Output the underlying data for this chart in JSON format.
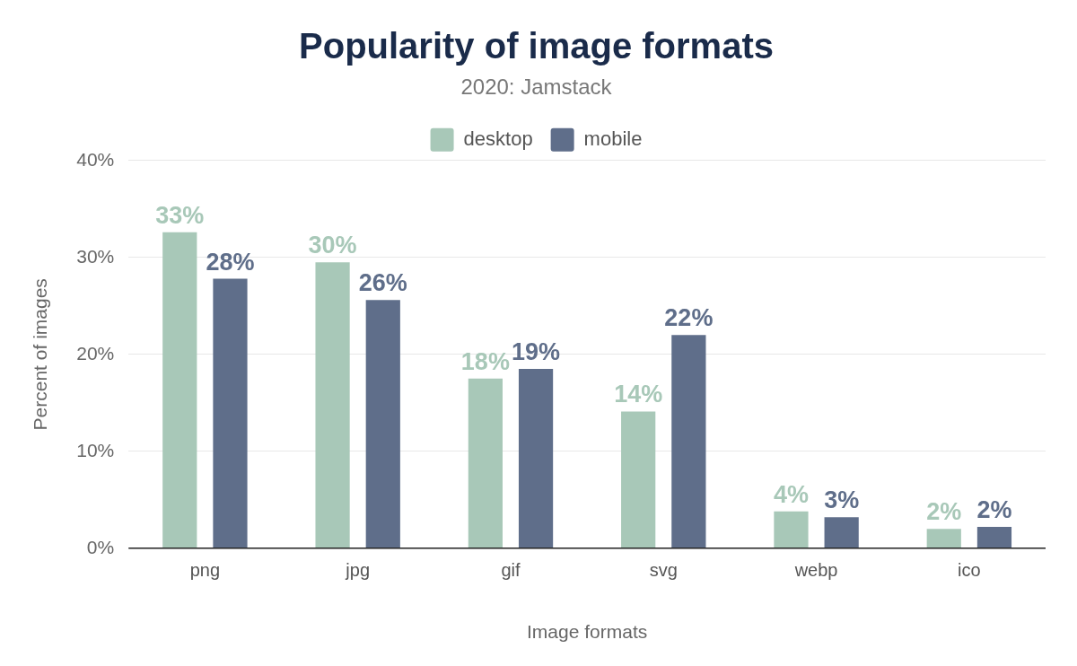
{
  "chart_data": {
    "type": "bar",
    "title": "Popularity of image formats",
    "subtitle": "2020: Jamstack",
    "xlabel": "Image formats",
    "ylabel": "Percent of images",
    "categories": [
      "png",
      "jpg",
      "gif",
      "svg",
      "webp",
      "ico"
    ],
    "series": [
      {
        "name": "desktop",
        "color": "#a8c8b8",
        "values": [
          32.6,
          29.5,
          17.5,
          14.1,
          3.8,
          2.0
        ],
        "value_labels": [
          "33%",
          "30%",
          "18%",
          "14%",
          "4%",
          "2%"
        ]
      },
      {
        "name": "mobile",
        "color": "#5f6e8a",
        "values": [
          27.8,
          25.6,
          18.5,
          22.0,
          3.2,
          2.2
        ],
        "value_labels": [
          "28%",
          "26%",
          "19%",
          "22%",
          "3%",
          "2%"
        ]
      }
    ],
    "ylim": [
      0,
      40
    ],
    "yticks": [
      {
        "value": 0,
        "label": "0%"
      },
      {
        "value": 10,
        "label": "10%"
      },
      {
        "value": 20,
        "label": "20%"
      },
      {
        "value": 30,
        "label": "30%"
      },
      {
        "value": 40,
        "label": "40%"
      }
    ],
    "grid": "y",
    "legend": "top"
  }
}
